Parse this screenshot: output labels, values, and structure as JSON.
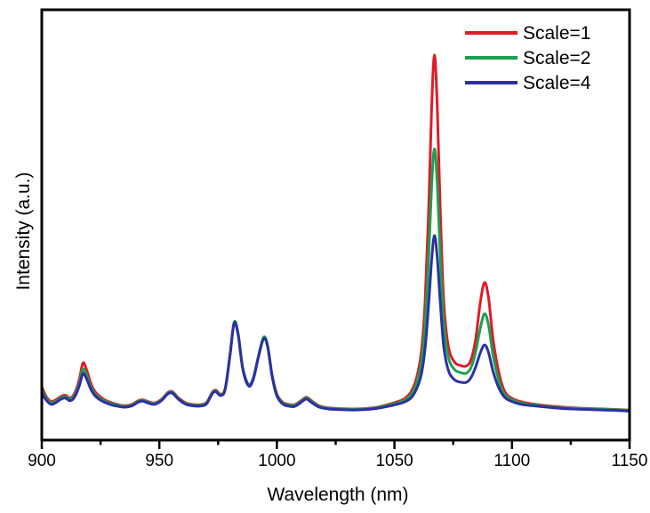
{
  "chart_data": {
    "type": "line",
    "title": "",
    "xlabel": "Wavelength (nm)",
    "ylabel": "Intensity (a.u.)",
    "xlim": [
      900,
      1150
    ],
    "x_ticks": [
      900,
      950,
      1000,
      1050,
      1100,
      1150
    ],
    "x_minor_ticks": [
      925,
      975,
      1025,
      1075,
      1125
    ],
    "y_tick_labels": [],
    "grid": false,
    "legend_position": "inside-top-right",
    "frame_color": "#000000",
    "intensity_units": "arbitrary (tallest Scale=1 peak normalized to 1.0)",
    "series": [
      {
        "name": "Scale=1",
        "color": "#e11a27",
        "points": [
          [
            900,
            0.062
          ],
          [
            902,
            0.034
          ],
          [
            904,
            0.021
          ],
          [
            906,
            0.026
          ],
          [
            908,
            0.035
          ],
          [
            910,
            0.039
          ],
          [
            912,
            0.031
          ],
          [
            914,
            0.045
          ],
          [
            916,
            0.085
          ],
          [
            917.5,
            0.13
          ],
          [
            919,
            0.112
          ],
          [
            921,
            0.07
          ],
          [
            923,
            0.046
          ],
          [
            926,
            0.029
          ],
          [
            929,
            0.019
          ],
          [
            932,
            0.013
          ],
          [
            935,
            0.009
          ],
          [
            938,
            0.012
          ],
          [
            941,
            0.023
          ],
          [
            943,
            0.026
          ],
          [
            945.5,
            0.02
          ],
          [
            948,
            0.017
          ],
          [
            951,
            0.028
          ],
          [
            953.5,
            0.046
          ],
          [
            955.5,
            0.049
          ],
          [
            958,
            0.032
          ],
          [
            961,
            0.018
          ],
          [
            964,
            0.013
          ],
          [
            967,
            0.012
          ],
          [
            970,
            0.018
          ],
          [
            972.5,
            0.047
          ],
          [
            974,
            0.053
          ],
          [
            976,
            0.042
          ],
          [
            978,
            0.058
          ],
          [
            980,
            0.15
          ],
          [
            981.8,
            0.243
          ],
          [
            983.5,
            0.212
          ],
          [
            985.5,
            0.115
          ],
          [
            988,
            0.069
          ],
          [
            990,
            0.089
          ],
          [
            992,
            0.145
          ],
          [
            994.3,
            0.2
          ],
          [
            996,
            0.18
          ],
          [
            998,
            0.095
          ],
          [
            1000,
            0.042
          ],
          [
            1002.5,
            0.019
          ],
          [
            1005,
            0.013
          ],
          [
            1007.5,
            0.012
          ],
          [
            1010,
            0.022
          ],
          [
            1012.5,
            0.033
          ],
          [
            1015,
            0.022
          ],
          [
            1018,
            0.009
          ],
          [
            1022,
            0.003
          ],
          [
            1027,
            0.001
          ],
          [
            1032,
            0.0
          ],
          [
            1037,
            0.001
          ],
          [
            1042,
            0.004
          ],
          [
            1047,
            0.012
          ],
          [
            1051,
            0.02
          ],
          [
            1054,
            0.028
          ],
          [
            1057,
            0.048
          ],
          [
            1059.5,
            0.09
          ],
          [
            1061.5,
            0.165
          ],
          [
            1063,
            0.3
          ],
          [
            1064.5,
            0.55
          ],
          [
            1065.8,
            0.85
          ],
          [
            1067,
            1.0
          ],
          [
            1068.2,
            0.86
          ],
          [
            1069.5,
            0.56
          ],
          [
            1071,
            0.3
          ],
          [
            1073,
            0.175
          ],
          [
            1075.5,
            0.133
          ],
          [
            1078,
            0.123
          ],
          [
            1080.5,
            0.121
          ],
          [
            1082.5,
            0.138
          ],
          [
            1084.5,
            0.195
          ],
          [
            1086.5,
            0.3
          ],
          [
            1088.3,
            0.357
          ],
          [
            1090,
            0.315
          ],
          [
            1092,
            0.195
          ],
          [
            1094.5,
            0.1
          ],
          [
            1097,
            0.048
          ],
          [
            1100,
            0.03
          ],
          [
            1104,
            0.02
          ],
          [
            1109,
            0.014
          ],
          [
            1115,
            0.009
          ],
          [
            1122,
            0.005
          ],
          [
            1130,
            0.002
          ],
          [
            1139,
            0.0
          ],
          [
            1150,
            -0.003
          ]
        ]
      },
      {
        "name": "Scale=2",
        "color": "#1aa050",
        "points": [
          [
            900,
            0.054
          ],
          [
            902,
            0.029
          ],
          [
            904,
            0.017
          ],
          [
            906,
            0.022
          ],
          [
            908,
            0.031
          ],
          [
            910,
            0.035
          ],
          [
            912,
            0.027
          ],
          [
            914,
            0.039
          ],
          [
            916,
            0.074
          ],
          [
            917.5,
            0.112
          ],
          [
            919,
            0.097
          ],
          [
            921,
            0.061
          ],
          [
            923,
            0.04
          ],
          [
            926,
            0.025
          ],
          [
            929,
            0.016
          ],
          [
            932,
            0.011
          ],
          [
            935,
            0.007
          ],
          [
            938,
            0.01
          ],
          [
            941,
            0.021
          ],
          [
            943,
            0.024
          ],
          [
            945.5,
            0.018
          ],
          [
            948,
            0.015
          ],
          [
            951,
            0.026
          ],
          [
            953.5,
            0.044
          ],
          [
            955.5,
            0.047
          ],
          [
            958,
            0.03
          ],
          [
            961,
            0.016
          ],
          [
            964,
            0.011
          ],
          [
            967,
            0.01
          ],
          [
            970,
            0.016
          ],
          [
            972.5,
            0.045
          ],
          [
            974,
            0.051
          ],
          [
            976,
            0.04
          ],
          [
            978,
            0.057
          ],
          [
            980,
            0.15
          ],
          [
            981.8,
            0.245
          ],
          [
            983.5,
            0.214
          ],
          [
            985.5,
            0.115
          ],
          [
            988,
            0.068
          ],
          [
            990,
            0.088
          ],
          [
            992,
            0.145
          ],
          [
            994.3,
            0.202
          ],
          [
            996,
            0.182
          ],
          [
            998,
            0.094
          ],
          [
            1000,
            0.04
          ],
          [
            1002.5,
            0.017
          ],
          [
            1005,
            0.011
          ],
          [
            1007.5,
            0.01
          ],
          [
            1010,
            0.02
          ],
          [
            1012.5,
            0.031
          ],
          [
            1015,
            0.02
          ],
          [
            1018,
            0.007
          ],
          [
            1022,
            0.002
          ],
          [
            1027,
            0.0
          ],
          [
            1032,
            -0.001
          ],
          [
            1037,
            0.0
          ],
          [
            1042,
            0.003
          ],
          [
            1047,
            0.01
          ],
          [
            1051,
            0.017
          ],
          [
            1054,
            0.024
          ],
          [
            1057,
            0.04
          ],
          [
            1059.5,
            0.075
          ],
          [
            1061.5,
            0.135
          ],
          [
            1063,
            0.24
          ],
          [
            1064.5,
            0.42
          ],
          [
            1065.8,
            0.63
          ],
          [
            1067,
            0.735
          ],
          [
            1068.2,
            0.64
          ],
          [
            1069.5,
            0.43
          ],
          [
            1071,
            0.24
          ],
          [
            1073,
            0.145
          ],
          [
            1075.5,
            0.112
          ],
          [
            1078,
            0.103
          ],
          [
            1080.5,
            0.101
          ],
          [
            1082.5,
            0.116
          ],
          [
            1084.5,
            0.16
          ],
          [
            1086.5,
            0.228
          ],
          [
            1088.3,
            0.269
          ],
          [
            1090,
            0.238
          ],
          [
            1092,
            0.15
          ],
          [
            1094.5,
            0.078
          ],
          [
            1097,
            0.04
          ],
          [
            1100,
            0.026
          ],
          [
            1104,
            0.017
          ],
          [
            1109,
            0.012
          ],
          [
            1115,
            0.007
          ],
          [
            1122,
            0.003
          ],
          [
            1130,
            0.001
          ],
          [
            1139,
            -0.001
          ],
          [
            1150,
            -0.004
          ]
        ]
      },
      {
        "name": "Scale=4",
        "color": "#2b31a1",
        "points": [
          [
            900,
            0.045
          ],
          [
            902,
            0.024
          ],
          [
            904,
            0.013
          ],
          [
            906,
            0.018
          ],
          [
            908,
            0.027
          ],
          [
            910,
            0.031
          ],
          [
            912,
            0.023
          ],
          [
            914,
            0.034
          ],
          [
            916,
            0.066
          ],
          [
            917.5,
            0.1
          ],
          [
            919,
            0.086
          ],
          [
            921,
            0.054
          ],
          [
            923,
            0.035
          ],
          [
            926,
            0.021
          ],
          [
            929,
            0.013
          ],
          [
            932,
            0.008
          ],
          [
            935,
            0.005
          ],
          [
            938,
            0.008
          ],
          [
            941,
            0.019
          ],
          [
            943,
            0.022
          ],
          [
            945.5,
            0.016
          ],
          [
            948,
            0.013
          ],
          [
            951,
            0.024
          ],
          [
            953.5,
            0.042
          ],
          [
            955.5,
            0.045
          ],
          [
            958,
            0.028
          ],
          [
            961,
            0.014
          ],
          [
            964,
            0.009
          ],
          [
            967,
            0.008
          ],
          [
            970,
            0.014
          ],
          [
            972.5,
            0.043
          ],
          [
            974,
            0.049
          ],
          [
            976,
            0.038
          ],
          [
            978,
            0.055
          ],
          [
            980,
            0.148
          ],
          [
            981.8,
            0.242
          ],
          [
            983.5,
            0.21
          ],
          [
            985.5,
            0.112
          ],
          [
            988,
            0.065
          ],
          [
            990,
            0.085
          ],
          [
            992,
            0.142
          ],
          [
            994.3,
            0.198
          ],
          [
            996,
            0.178
          ],
          [
            998,
            0.091
          ],
          [
            1000,
            0.037
          ],
          [
            1002.5,
            0.014
          ],
          [
            1005,
            0.008
          ],
          [
            1007.5,
            0.007
          ],
          [
            1010,
            0.017
          ],
          [
            1012.5,
            0.028
          ],
          [
            1015,
            0.017
          ],
          [
            1018,
            0.005
          ],
          [
            1022,
            0.0
          ],
          [
            1027,
            -0.002
          ],
          [
            1032,
            -0.003
          ],
          [
            1037,
            -0.002
          ],
          [
            1042,
            0.001
          ],
          [
            1047,
            0.007
          ],
          [
            1051,
            0.013
          ],
          [
            1054,
            0.019
          ],
          [
            1057,
            0.031
          ],
          [
            1059.5,
            0.058
          ],
          [
            1061.5,
            0.1
          ],
          [
            1063,
            0.17
          ],
          [
            1064.5,
            0.29
          ],
          [
            1065.8,
            0.42
          ],
          [
            1067,
            0.49
          ],
          [
            1068.2,
            0.43
          ],
          [
            1069.5,
            0.3
          ],
          [
            1071,
            0.175
          ],
          [
            1073,
            0.108
          ],
          [
            1075.5,
            0.083
          ],
          [
            1078,
            0.076
          ],
          [
            1080.5,
            0.075
          ],
          [
            1082.5,
            0.088
          ],
          [
            1084.5,
            0.118
          ],
          [
            1086.5,
            0.158
          ],
          [
            1088.3,
            0.181
          ],
          [
            1090,
            0.16
          ],
          [
            1092,
            0.105
          ],
          [
            1094.5,
            0.058
          ],
          [
            1097,
            0.032
          ],
          [
            1100,
            0.021
          ],
          [
            1104,
            0.013
          ],
          [
            1109,
            0.009
          ],
          [
            1115,
            0.005
          ],
          [
            1122,
            0.001
          ],
          [
            1130,
            -0.001
          ],
          [
            1139,
            -0.003
          ],
          [
            1150,
            -0.006
          ]
        ]
      }
    ]
  }
}
